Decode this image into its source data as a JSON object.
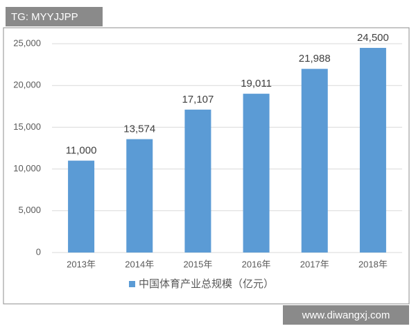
{
  "chart_data": {
    "type": "bar",
    "categories": [
      "2013年",
      "2014年",
      "2015年",
      "2016年",
      "2017年",
      "2018年"
    ],
    "values": [
      11000,
      13574,
      17107,
      19011,
      21988,
      24500
    ],
    "value_labels": [
      "11,000",
      "13,574",
      "17,107",
      "19,011",
      "21,988",
      "24,500"
    ],
    "color": "#5b9bd5",
    "legend_label": "中国体育产业总规模（亿元）",
    "legend": "bottom",
    "ylim": [
      0,
      25000
    ],
    "yticks": [
      0,
      {
        "value": 5000,
        "label": "5,000"
      },
      {
        "value": 10000,
        "label": "10,000"
      },
      {
        "value": 15000,
        "label": "15,000"
      },
      {
        "value": 20000,
        "label": "20,000"
      },
      {
        "value": 25000,
        "label": "25,000"
      }
    ],
    "grid": true
  },
  "watermark_top": "TG: MYYJJPP",
  "watermark_bottom": "www.diwangxj.com"
}
